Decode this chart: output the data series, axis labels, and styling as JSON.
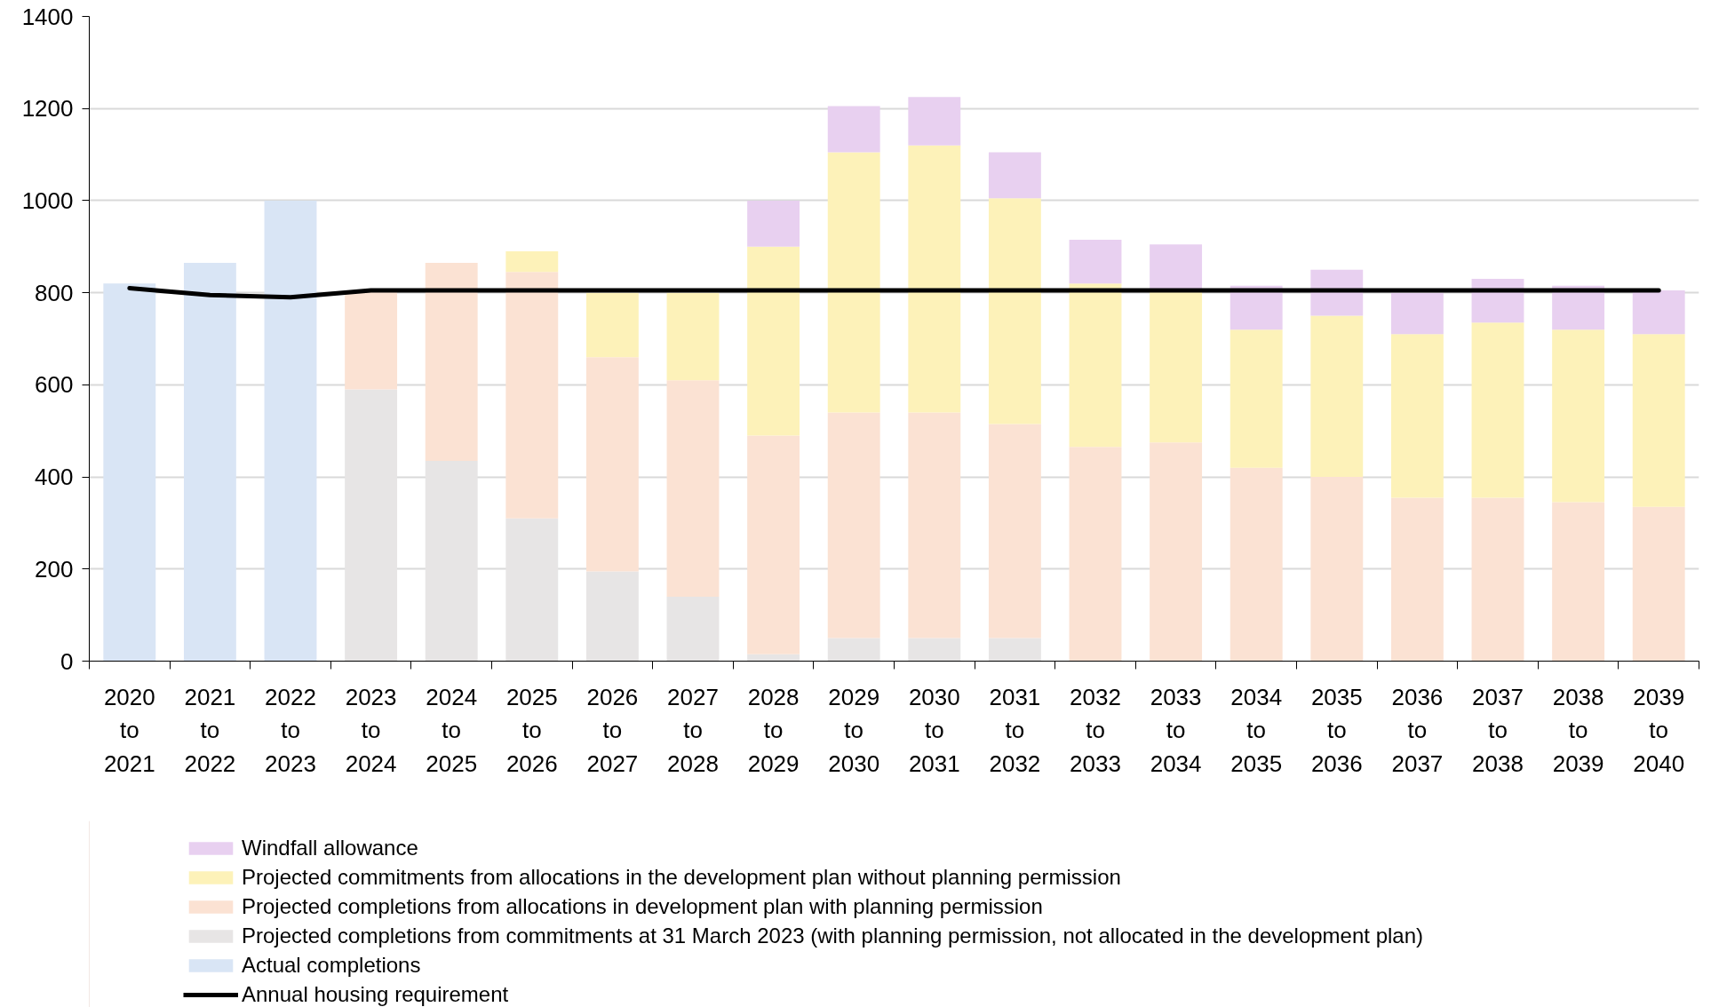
{
  "chart_data": {
    "type": "bar",
    "stacked": true,
    "categories": [
      "2020 to 2021",
      "2021 to 2022",
      "2022 to 2023",
      "2023 to 2024",
      "2024 to 2025",
      "2025 to 2026",
      "2026 to 2027",
      "2027 to 2028",
      "2028 to 2029",
      "2029 to 2030",
      "2030 to 2031",
      "2031 to 2032",
      "2032 to 2033",
      "2033 to 2034",
      "2034 to 2035",
      "2035 to 2036",
      "2036 to 2037",
      "2037 to 2038",
      "2038 to 2039",
      "2039 to 2040"
    ],
    "ylim": [
      0,
      1400
    ],
    "yticks": [
      0,
      200,
      400,
      600,
      800,
      1000,
      1200,
      1400
    ],
    "grid": "y",
    "legend": "bottom",
    "series": [
      {
        "name": "Actual completions",
        "color": "#d9e5f5",
        "values": [
          820,
          865,
          1000,
          null,
          null,
          null,
          null,
          null,
          null,
          null,
          null,
          null,
          null,
          null,
          null,
          null,
          null,
          null,
          null,
          null
        ]
      },
      {
        "name": "Projected completions from commitments at 31 March 2023 (with planning permission, not allocated in the development plan)",
        "color": "#e7e5e5",
        "values": [
          null,
          null,
          null,
          590,
          435,
          310,
          195,
          140,
          15,
          50,
          50,
          50,
          null,
          null,
          null,
          null,
          null,
          null,
          null,
          null
        ]
      },
      {
        "name": "Projected completions from allocations in development plan with planning permission",
        "color": "#fbe2d3",
        "values": [
          null,
          null,
          null,
          215,
          430,
          535,
          465,
          470,
          475,
          490,
          490,
          465,
          465,
          475,
          420,
          400,
          355,
          355,
          345,
          335
        ]
      },
      {
        "name": "Projected commitments from allocations in the development plan without planning permission",
        "color": "#fdf2b9",
        "values": [
          null,
          null,
          null,
          null,
          null,
          45,
          140,
          190,
          410,
          565,
          580,
          490,
          355,
          330,
          300,
          350,
          355,
          380,
          375,
          375
        ]
      },
      {
        "name": "Windfall allowance",
        "color": "#e8d0f0",
        "values": [
          null,
          null,
          null,
          null,
          null,
          null,
          null,
          null,
          100,
          100,
          105,
          100,
          95,
          100,
          95,
          100,
          90,
          95,
          95,
          95
        ]
      },
      {
        "name": "Annual housing requirement",
        "type": "line",
        "color": "#000000",
        "values": [
          810,
          795,
          790,
          805,
          805,
          805,
          805,
          805,
          805,
          805,
          805,
          805,
          805,
          805,
          805,
          805,
          805,
          805,
          805,
          805
        ]
      }
    ]
  }
}
